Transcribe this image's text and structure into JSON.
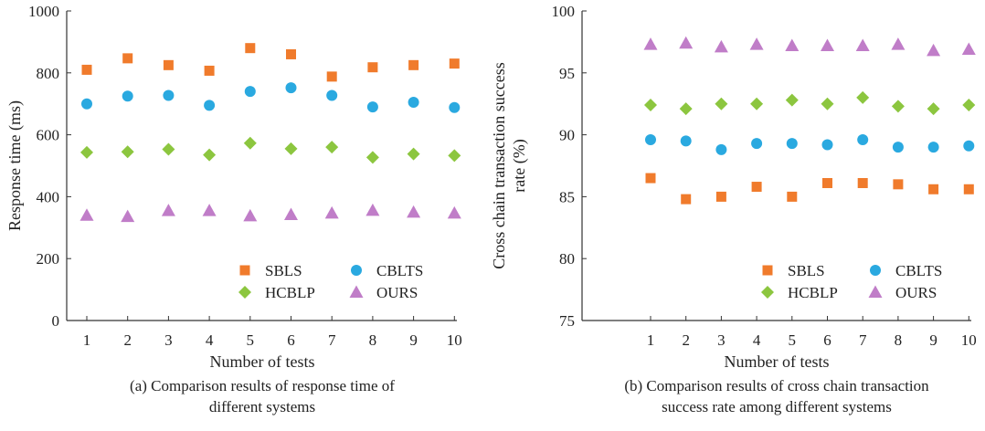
{
  "chart_data": [
    {
      "type": "scatter",
      "id": "response-time",
      "title": "",
      "xlabel": "Number of tests",
      "ylabel": "Response time (ms)",
      "caption_lines": [
        "(a) Comparison results of response time of",
        "different systems"
      ],
      "x": [
        1,
        2,
        3,
        4,
        5,
        6,
        7,
        8,
        9,
        10
      ],
      "ylim": [
        0,
        1000
      ],
      "yticks": [
        0,
        200,
        400,
        600,
        800,
        1000
      ],
      "grid": false,
      "legend_position": "bottom-right",
      "series": [
        {
          "name": "SBLS",
          "marker": "square",
          "color": "#f07b2c",
          "values": [
            810,
            847,
            825,
            807,
            880,
            860,
            788,
            818,
            825,
            830
          ]
        },
        {
          "name": "CBLTS",
          "marker": "circle",
          "color": "#2aa9e0",
          "values": [
            700,
            725,
            727,
            695,
            740,
            752,
            727,
            690,
            705,
            688
          ]
        },
        {
          "name": "HCBLP",
          "marker": "diamond",
          "color": "#8cc63f",
          "values": [
            543,
            545,
            553,
            535,
            573,
            555,
            560,
            527,
            538,
            533
          ]
        },
        {
          "name": "OURS",
          "marker": "triangle",
          "color": "#c07dc8",
          "values": [
            340,
            336,
            355,
            355,
            338,
            342,
            347,
            356,
            350,
            347
          ]
        }
      ]
    },
    {
      "type": "scatter",
      "id": "success-rate",
      "title": "",
      "xlabel": "Number of tests",
      "ylabel_lines": [
        "Cross chain transaction success",
        "rate (%)"
      ],
      "caption_lines": [
        "(b) Comparison results of cross chain transaction",
        "success rate among different systems"
      ],
      "x": [
        1,
        2,
        3,
        4,
        5,
        6,
        7,
        8,
        9,
        10
      ],
      "ylim": [
        75,
        100
      ],
      "yticks": [
        75,
        80,
        85,
        90,
        95,
        100
      ],
      "grid": false,
      "legend_position": "bottom-right",
      "series": [
        {
          "name": "SBLS",
          "marker": "square",
          "color": "#f07b2c",
          "values": [
            86.5,
            84.8,
            85.0,
            85.8,
            85.0,
            86.1,
            86.1,
            86.0,
            85.6,
            85.6
          ]
        },
        {
          "name": "CBLTS",
          "marker": "circle",
          "color": "#2aa9e0",
          "values": [
            89.6,
            89.5,
            88.8,
            89.3,
            89.3,
            89.2,
            89.6,
            89.0,
            89.0,
            89.1
          ]
        },
        {
          "name": "HCBLP",
          "marker": "diamond",
          "color": "#8cc63f",
          "values": [
            92.4,
            92.1,
            92.5,
            92.5,
            92.8,
            92.5,
            93.0,
            92.3,
            92.1,
            92.4
          ]
        },
        {
          "name": "OURS",
          "marker": "triangle",
          "color": "#c07dc8",
          "values": [
            97.3,
            97.4,
            97.1,
            97.3,
            97.2,
            97.2,
            97.2,
            97.3,
            96.8,
            96.9
          ]
        }
      ]
    }
  ]
}
